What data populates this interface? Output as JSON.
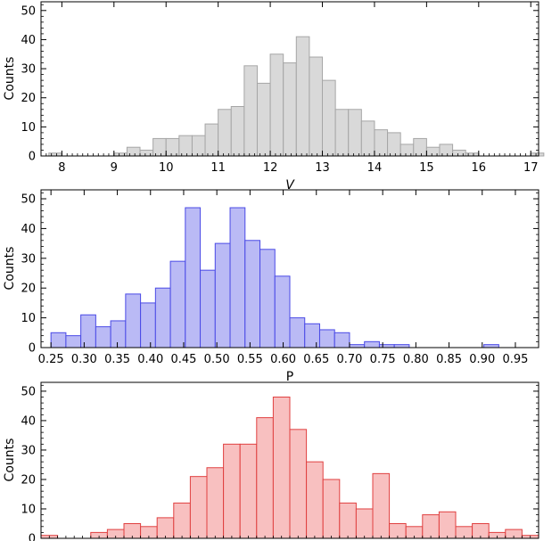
{
  "chart_data": [
    {
      "type": "bar",
      "subtype": "histogram",
      "xlabel": "V",
      "ylabel": "Counts",
      "xlim": [
        7.6,
        17.15
      ],
      "ylim": [
        0,
        53
      ],
      "xticks": [
        "8",
        "9",
        "10",
        "11",
        "12",
        "13",
        "14",
        "15",
        "16",
        "17"
      ],
      "xtick_values": [
        8,
        9,
        10,
        11,
        12,
        13,
        14,
        15,
        16,
        17
      ],
      "yticks": [
        "0",
        "10",
        "20",
        "30",
        "40",
        "50"
      ],
      "ytick_values": [
        0,
        10,
        20,
        30,
        40,
        50
      ],
      "bin_start": 7.75,
      "bin_width": 0.25,
      "counts": [
        1,
        0,
        0,
        0,
        0,
        1,
        3,
        2,
        6,
        6,
        7,
        7,
        11,
        16,
        17,
        31,
        25,
        35,
        32,
        41,
        34,
        26,
        16,
        16,
        12,
        9,
        8,
        4,
        6,
        3,
        4,
        2,
        1,
        0,
        0,
        0,
        0,
        1
      ],
      "fill": "#d9d9d9",
      "edge": "#a6a6a6"
    },
    {
      "type": "bar",
      "subtype": "histogram",
      "xlabel": "P",
      "ylabel": "Counts",
      "xlim": [
        0.235,
        0.985
      ],
      "ylim": [
        0,
        53
      ],
      "xticks": [
        "0.25",
        "0.30",
        "0.35",
        "0.40",
        "0.45",
        "0.50",
        "0.55",
        "0.60",
        "0.65",
        "0.70",
        "0.75",
        "0.80",
        "0.85",
        "0.90",
        "0.95"
      ],
      "xtick_values": [
        0.25,
        0.3,
        0.35,
        0.4,
        0.45,
        0.5,
        0.55,
        0.6,
        0.65,
        0.7,
        0.75,
        0.8,
        0.85,
        0.9,
        0.95
      ],
      "yticks": [
        "0",
        "10",
        "20",
        "30",
        "40",
        "50"
      ],
      "ytick_values": [
        0,
        10,
        20,
        30,
        40,
        50
      ],
      "bin_start": 0.25,
      "bin_width": 0.0225,
      "counts": [
        5,
        4,
        11,
        7,
        9,
        18,
        15,
        20,
        29,
        47,
        26,
        35,
        47,
        36,
        33,
        24,
        10,
        8,
        6,
        5,
        1,
        2,
        1,
        1,
        0,
        0,
        0,
        0,
        0,
        1
      ],
      "fill": "#babaf5",
      "edge": "#4a4ae6"
    },
    {
      "type": "bar",
      "subtype": "histogram",
      "xlabel": "",
      "ylabel": "Counts",
      "xlim": [
        0,
        30
      ],
      "ylim": [
        0,
        53
      ],
      "xticks": [],
      "xtick_values": [],
      "yticks": [
        "0",
        "10",
        "20",
        "30",
        "40",
        "50"
      ],
      "ytick_values": [
        0,
        10,
        20,
        30,
        40,
        50
      ],
      "bin_start": 0,
      "bin_width": 1,
      "counts": [
        1,
        0,
        0,
        2,
        3,
        5,
        4,
        7,
        12,
        21,
        24,
        32,
        32,
        41,
        48,
        37,
        26,
        20,
        12,
        10,
        22,
        5,
        4,
        8,
        9,
        4,
        5,
        2,
        3,
        1
      ],
      "fill": "#f8c0c0",
      "edge": "#e04040"
    }
  ]
}
